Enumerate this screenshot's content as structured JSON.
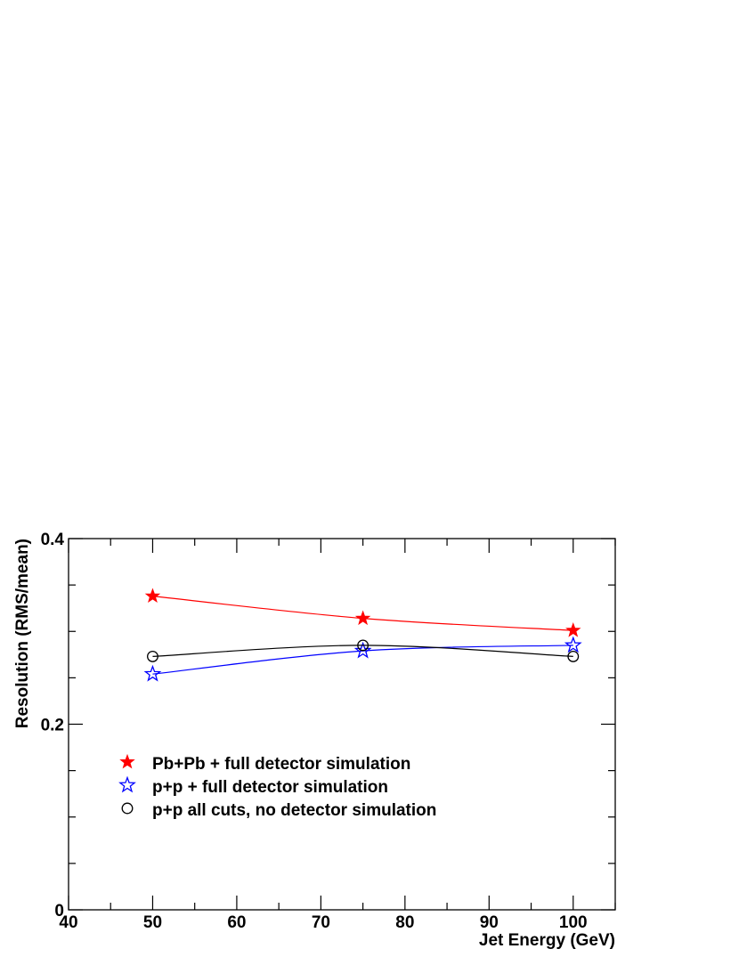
{
  "chart_data": {
    "type": "line",
    "title": "",
    "xlabel": "Jet Energy (GeV)",
    "ylabel": "Resolution (RMS/mean)",
    "xlim": [
      40,
      105
    ],
    "ylim": [
      0,
      0.4
    ],
    "x_ticks": [
      "40",
      "50",
      "60",
      "70",
      "80",
      "90",
      "100"
    ],
    "y_ticks": [
      "0",
      "0.2",
      "0.4"
    ],
    "grid": false,
    "legend_position": "lower-left",
    "series": [
      {
        "name": "Pb+Pb + full detector simulation",
        "marker": "filled-star",
        "color": "#ff0000",
        "x": [
          50,
          75,
          100
        ],
        "y": [
          0.338,
          0.314,
          0.301
        ]
      },
      {
        "name": "p+p + full detector simulation",
        "marker": "open-star",
        "color": "#0000ff",
        "x": [
          50,
          75,
          100
        ],
        "y": [
          0.254,
          0.279,
          0.285
        ]
      },
      {
        "name": "p+p all cuts, no detector simulation",
        "marker": "open-circle",
        "color": "#000000",
        "x": [
          50,
          75,
          100
        ],
        "y": [
          0.273,
          0.285,
          0.273
        ]
      }
    ]
  }
}
